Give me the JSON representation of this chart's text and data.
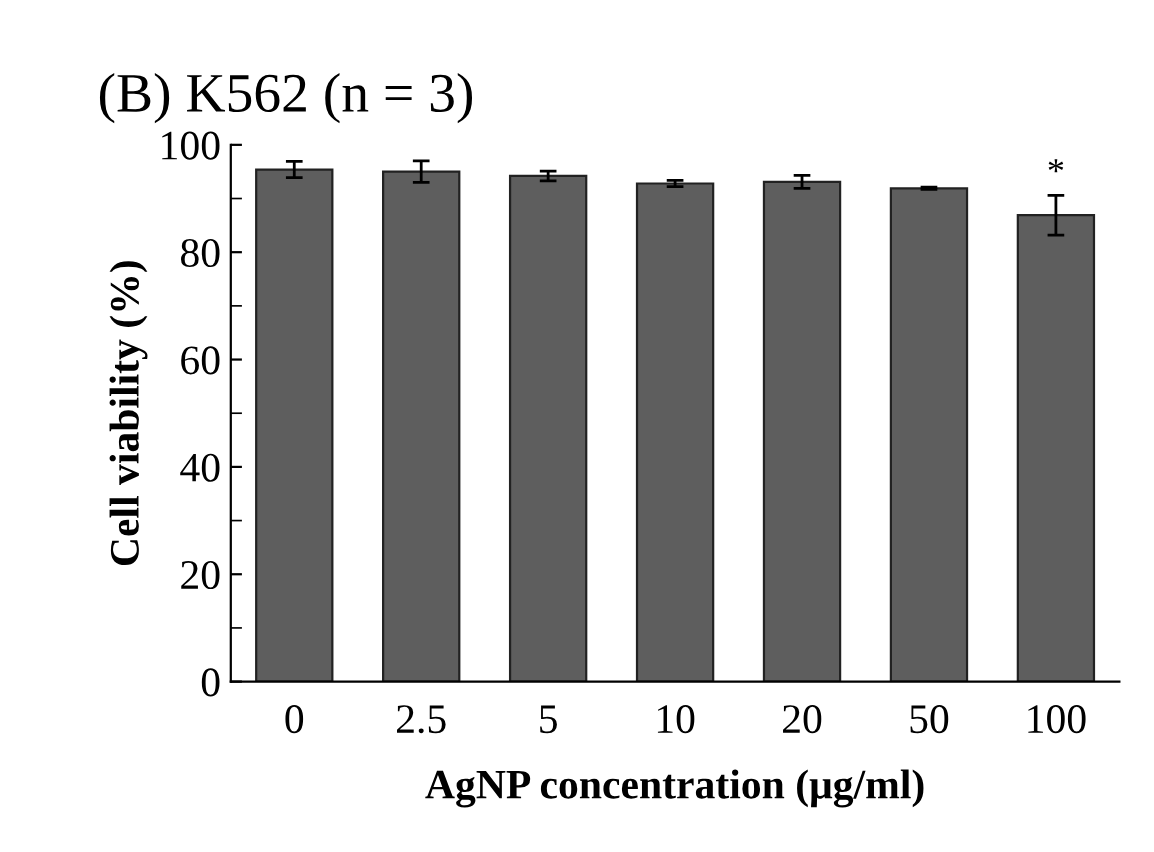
{
  "chart_data": {
    "type": "bar",
    "title": "(B) K562 (n = 3)",
    "xlabel": "AgNP concentration (μg/ml)",
    "ylabel": "Cell viability (%)",
    "categories": [
      "0",
      "2.5",
      "5",
      "10",
      "20",
      "50",
      "100"
    ],
    "values": [
      95.4,
      95.0,
      94.2,
      92.8,
      93.1,
      91.9,
      86.9
    ],
    "errors": [
      1.5,
      2.0,
      0.9,
      0.6,
      1.2,
      0.2,
      3.7
    ],
    "color": "#5e5e5e",
    "ylim": [
      0,
      100
    ],
    "yticks": [
      0,
      20,
      40,
      60,
      80,
      100
    ],
    "annotations": [
      {
        "text": "*",
        "x": "100",
        "y": 91.5
      }
    ],
    "grid": false,
    "legend": false
  }
}
